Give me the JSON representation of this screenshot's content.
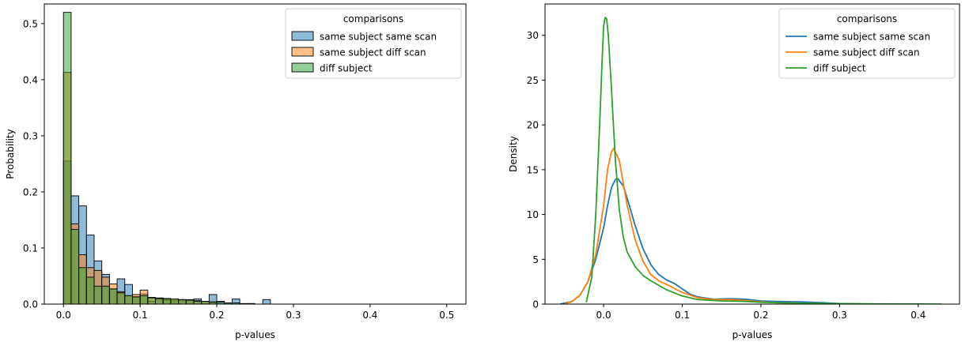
{
  "chart_data": [
    {
      "type": "bar",
      "subtype": "histogram",
      "xlabel": "p-values",
      "ylabel": "Probability",
      "xlim": [
        -0.025,
        0.525
      ],
      "ylim": [
        0,
        0.535
      ],
      "xticks": [
        {
          "v": 0.0,
          "label": "0.0"
        },
        {
          "v": 0.1,
          "label": "0.1"
        },
        {
          "v": 0.2,
          "label": "0.2"
        },
        {
          "v": 0.3,
          "label": "0.3"
        },
        {
          "v": 0.4,
          "label": "0.4"
        },
        {
          "v": 0.5,
          "label": "0.5"
        }
      ],
      "yticks": [
        {
          "v": 0.0,
          "label": "0.0"
        },
        {
          "v": 0.1,
          "label": "0.1"
        },
        {
          "v": 0.2,
          "label": "0.2"
        },
        {
          "v": 0.3,
          "label": "0.3"
        },
        {
          "v": 0.4,
          "label": "0.4"
        },
        {
          "v": 0.5,
          "label": "0.5"
        }
      ],
      "bin_width": 0.01,
      "bin_start": 0.0,
      "legend": {
        "title": "comparisons",
        "placement": "top-right"
      },
      "series": [
        {
          "name": "same subject same scan",
          "color": "#1f77b4",
          "values": [
            0.255,
            0.193,
            0.175,
            0.123,
            0.077,
            0.053,
            0.027,
            0.045,
            0.035,
            0.012,
            0.018,
            0.005,
            0.009,
            0.007,
            0.006,
            0.007,
            0.007,
            0.009,
            0.005,
            0.017,
            0.005,
            0.002,
            0.009,
            0.0,
            0.001,
            0.0,
            0.008
          ]
        },
        {
          "name": "same subject diff scan",
          "color": "#ff7f0e",
          "values": [
            0.413,
            0.143,
            0.088,
            0.065,
            0.06,
            0.048,
            0.036,
            0.022,
            0.015,
            0.017,
            0.025,
            0.012,
            0.011,
            0.009,
            0.009,
            0.008,
            0.008,
            0.006,
            0.005,
            0.003,
            0.0,
            0.0,
            0.0,
            0.0,
            0.0,
            0.0,
            0.0
          ]
        },
        {
          "name": "diff subject",
          "color": "#2ca02c",
          "values": [
            0.52,
            0.133,
            0.065,
            0.048,
            0.032,
            0.032,
            0.027,
            0.02,
            0.015,
            0.013,
            0.015,
            0.011,
            0.01,
            0.01,
            0.009,
            0.008,
            0.007,
            0.005,
            0.005,
            0.004,
            0.003,
            0.002,
            0.002,
            0.001,
            0.0,
            0.0,
            0.0
          ]
        }
      ]
    },
    {
      "type": "line",
      "subtype": "kde",
      "xlabel": "p-values",
      "ylabel": "Density",
      "xlim": [
        -0.0745,
        0.4525
      ],
      "ylim": [
        0,
        33.5
      ],
      "xticks": [
        {
          "v": 0.0,
          "label": "0.0"
        },
        {
          "v": 0.1,
          "label": "0.1"
        },
        {
          "v": 0.2,
          "label": "0.2"
        },
        {
          "v": 0.3,
          "label": "0.3"
        },
        {
          "v": 0.4,
          "label": "0.4"
        }
      ],
      "yticks": [
        {
          "v": 0,
          "label": "0"
        },
        {
          "v": 5,
          "label": "5"
        },
        {
          "v": 10,
          "label": "10"
        },
        {
          "v": 15,
          "label": "15"
        },
        {
          "v": 20,
          "label": "20"
        },
        {
          "v": 25,
          "label": "25"
        },
        {
          "v": 30,
          "label": "30"
        }
      ],
      "legend": {
        "title": "comparisons",
        "placement": "top-right"
      },
      "series": [
        {
          "name": "same subject same scan",
          "color": "#1f77b4",
          "x": [
            -0.055,
            -0.04,
            -0.03,
            -0.02,
            -0.01,
            0.0,
            0.005,
            0.01,
            0.015,
            0.018,
            0.025,
            0.03,
            0.04,
            0.05,
            0.06,
            0.07,
            0.08,
            0.09,
            0.1,
            0.11,
            0.12,
            0.14,
            0.16,
            0.18,
            0.2,
            0.22,
            0.25,
            0.28,
            0.3,
            0.32,
            0.34
          ],
          "y": [
            0.0,
            0.3,
            1.0,
            2.5,
            5.0,
            8.5,
            11.0,
            13.0,
            13.9,
            14.0,
            13.2,
            11.8,
            8.8,
            6.2,
            4.4,
            3.3,
            2.7,
            2.3,
            1.7,
            1.1,
            0.8,
            0.55,
            0.6,
            0.55,
            0.35,
            0.3,
            0.25,
            0.15,
            0.05,
            0.02,
            0.0
          ]
        },
        {
          "name": "same subject diff scan",
          "color": "#ff7f0e",
          "x": [
            -0.05,
            -0.04,
            -0.03,
            -0.02,
            -0.01,
            0.0,
            0.005,
            0.01,
            0.013,
            0.02,
            0.03,
            0.04,
            0.05,
            0.06,
            0.07,
            0.08,
            0.1,
            0.12,
            0.14,
            0.16,
            0.18,
            0.2,
            0.22,
            0.25,
            0.28,
            0.3,
            0.32
          ],
          "y": [
            0.0,
            0.3,
            1.0,
            2.5,
            5.5,
            11.0,
            15.0,
            17.0,
            17.4,
            16.0,
            11.0,
            7.2,
            4.8,
            3.3,
            2.6,
            2.2,
            1.3,
            0.7,
            0.5,
            0.5,
            0.4,
            0.25,
            0.15,
            0.1,
            0.05,
            0.02,
            0.0
          ]
        },
        {
          "name": "diff subject",
          "color": "#2ca02c",
          "x": [
            -0.022,
            -0.015,
            -0.01,
            -0.005,
            -0.002,
            0.0,
            0.002,
            0.004,
            0.006,
            0.01,
            0.015,
            0.02,
            0.025,
            0.03,
            0.04,
            0.05,
            0.06,
            0.08,
            0.1,
            0.12,
            0.15,
            0.18,
            0.2,
            0.25,
            0.3,
            0.35,
            0.4,
            0.43
          ],
          "y": [
            0.2,
            3.0,
            10.0,
            20.0,
            27.0,
            31.0,
            32.0,
            31.8,
            30.0,
            24.0,
            16.0,
            10.5,
            7.5,
            5.8,
            4.2,
            3.2,
            2.6,
            1.6,
            0.9,
            0.5,
            0.35,
            0.3,
            0.2,
            0.1,
            0.05,
            0.02,
            0.01,
            0.0
          ]
        }
      ]
    }
  ]
}
